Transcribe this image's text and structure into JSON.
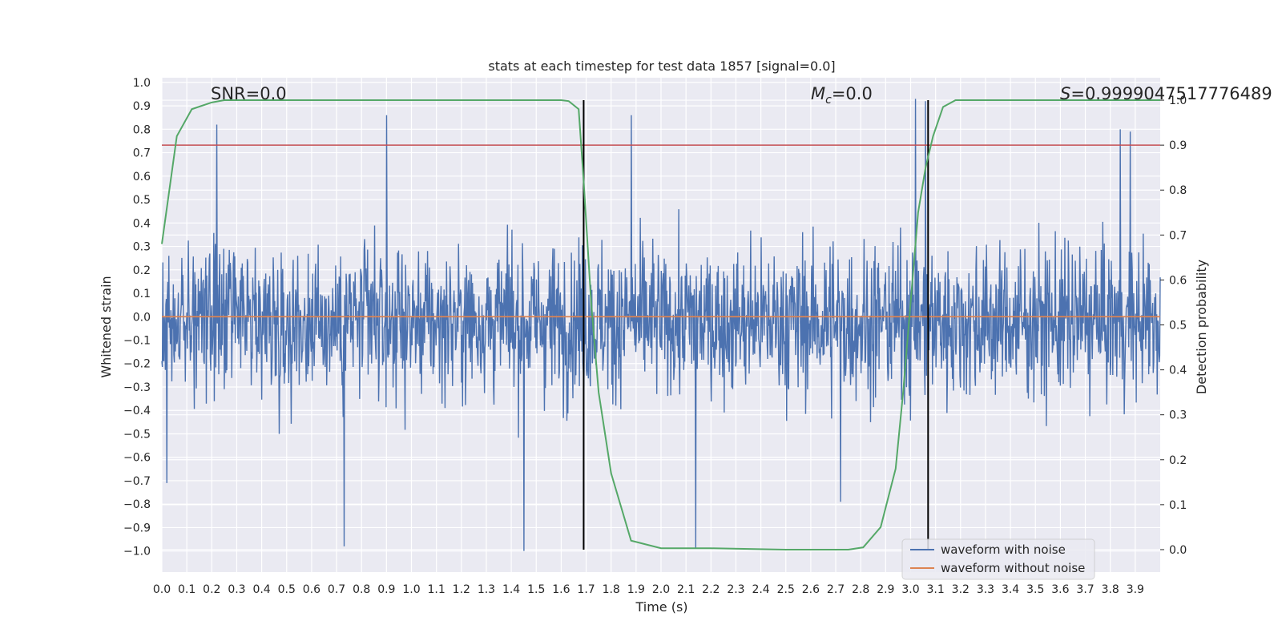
{
  "chart_data": {
    "type": "line",
    "title": "stats at each timestep for test data 1857 [signal=0.0]",
    "xlabel": "Time (s)",
    "ylabel": "Whitened strain",
    "y2label": "Detection probability",
    "xlim": [
      0.0,
      4.0
    ],
    "ylim": [
      -1.09,
      1.02
    ],
    "y2lim": [
      -0.05,
      1.05
    ],
    "xticks": [
      "0.0",
      "0.1",
      "0.2",
      "0.3",
      "0.4",
      "0.5",
      "0.6",
      "0.7",
      "0.8",
      "0.9",
      "1.0",
      "1.1",
      "1.2",
      "1.3",
      "1.4",
      "1.5",
      "1.6",
      "1.7",
      "1.8",
      "1.9",
      "2.0",
      "2.1",
      "2.2",
      "2.3",
      "2.4",
      "2.5",
      "2.6",
      "2.7",
      "2.8",
      "2.9",
      "3.0",
      "3.1",
      "3.2",
      "3.3",
      "3.4",
      "3.5",
      "3.6",
      "3.7",
      "3.8",
      "3.9"
    ],
    "yticks": [
      "1.0",
      "0.9",
      "0.8",
      "0.7",
      "0.6",
      "0.5",
      "0.4",
      "0.3",
      "0.2",
      "0.1",
      "0.0",
      "−0.1",
      "−0.2",
      "−0.3",
      "−0.4",
      "−0.5",
      "−0.6",
      "−0.7",
      "−0.8",
      "−0.9",
      "−1.0"
    ],
    "y2ticks": [
      "0.0",
      "0.1",
      "0.2",
      "0.3",
      "0.4",
      "0.5",
      "0.6",
      "0.7",
      "0.8",
      "0.9",
      "1.0"
    ],
    "grid": true,
    "legend_position": "lower-right",
    "annotations": {
      "snr": "SNR=0.0",
      "mc_symbol": "M",
      "mc_sub": "c",
      "mc_value": "=0.0",
      "s_symbol": "S",
      "s_value": "=0.9999047517776489"
    },
    "series": [
      {
        "name": "waveform with noise",
        "color": "#4c72b0",
        "noise_envelope": [
          -1.0,
          0.93
        ],
        "notable_peaks": [
          {
            "x": 0.22,
            "y": 0.82
          },
          {
            "x": 0.9,
            "y": 0.86
          },
          {
            "x": 1.88,
            "y": 0.86
          },
          {
            "x": 3.02,
            "y": 0.93
          },
          {
            "x": 3.06,
            "y": 0.92
          },
          {
            "x": 3.84,
            "y": 0.8
          },
          {
            "x": 3.88,
            "y": 0.79
          },
          {
            "x": 0.73,
            "y": -0.98
          },
          {
            "x": 1.45,
            "y": -1.0
          },
          {
            "x": 2.14,
            "y": -0.99
          },
          {
            "x": 0.02,
            "y": -0.71
          },
          {
            "x": 2.72,
            "y": -0.79
          }
        ]
      },
      {
        "name": "waveform without noise",
        "color": "#dd8452",
        "x": [
          0.0,
          4.0
        ],
        "y": [
          0.0,
          0.0
        ]
      },
      {
        "name": "detection probability",
        "axis": "right",
        "color": "#55a868",
        "x": [
          0.0,
          0.03,
          0.06,
          0.12,
          0.2,
          0.25,
          0.3,
          0.4,
          1.5,
          1.6,
          1.63,
          1.67,
          1.69,
          1.72,
          1.75,
          1.8,
          1.88,
          2.0,
          2.2,
          2.5,
          2.75,
          2.81,
          2.88,
          2.94,
          2.97,
          3.0,
          3.03,
          3.06,
          3.09,
          3.13,
          3.18,
          3.3,
          4.0
        ],
        "y": [
          0.68,
          0.8,
          0.92,
          0.98,
          0.995,
          1.0,
          1.0,
          1.0,
          1.0,
          1.0,
          0.998,
          0.98,
          0.82,
          0.55,
          0.35,
          0.17,
          0.02,
          0.003,
          0.003,
          0.0,
          0.0,
          0.005,
          0.05,
          0.18,
          0.35,
          0.55,
          0.75,
          0.85,
          0.92,
          0.985,
          1.0,
          1.0,
          1.0
        ]
      }
    ],
    "threshold": {
      "axis": "right",
      "value": 0.9,
      "color": "#c44e52"
    },
    "vlines": [
      {
        "x": 1.69
      },
      {
        "x": 3.07
      }
    ],
    "legend": [
      "waveform with noise",
      "waveform without noise"
    ]
  }
}
